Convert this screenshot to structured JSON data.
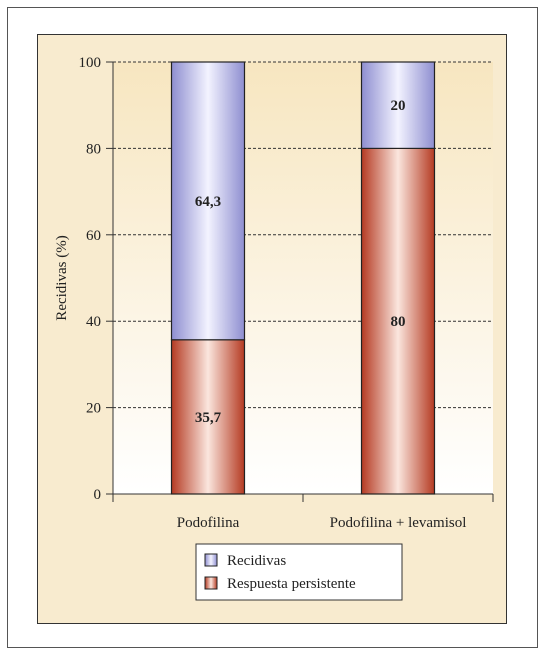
{
  "chart_data": {
    "type": "bar",
    "stacked": true,
    "categories": [
      "Podofilina",
      "Podofilina + levamisol"
    ],
    "series": [
      {
        "name": "Respuesta persistente",
        "values": [
          35.7,
          80
        ],
        "labels": [
          "35,7",
          "80"
        ],
        "color": "#b8402a"
      },
      {
        "name": "Recidivas",
        "values": [
          64.3,
          20
        ],
        "labels": [
          "64,3",
          "20"
        ],
        "color": "#b3b3e0"
      }
    ],
    "ylabel": "Recidivas (%)",
    "xlabel": "",
    "ylim": [
      0,
      100
    ],
    "yticks": [
      0,
      20,
      40,
      60,
      80,
      100
    ],
    "grid": "horizontal-dashed",
    "legend_position": "bottom-center",
    "background_gradient": [
      "#f7e6c0",
      "#ffffff"
    ]
  }
}
